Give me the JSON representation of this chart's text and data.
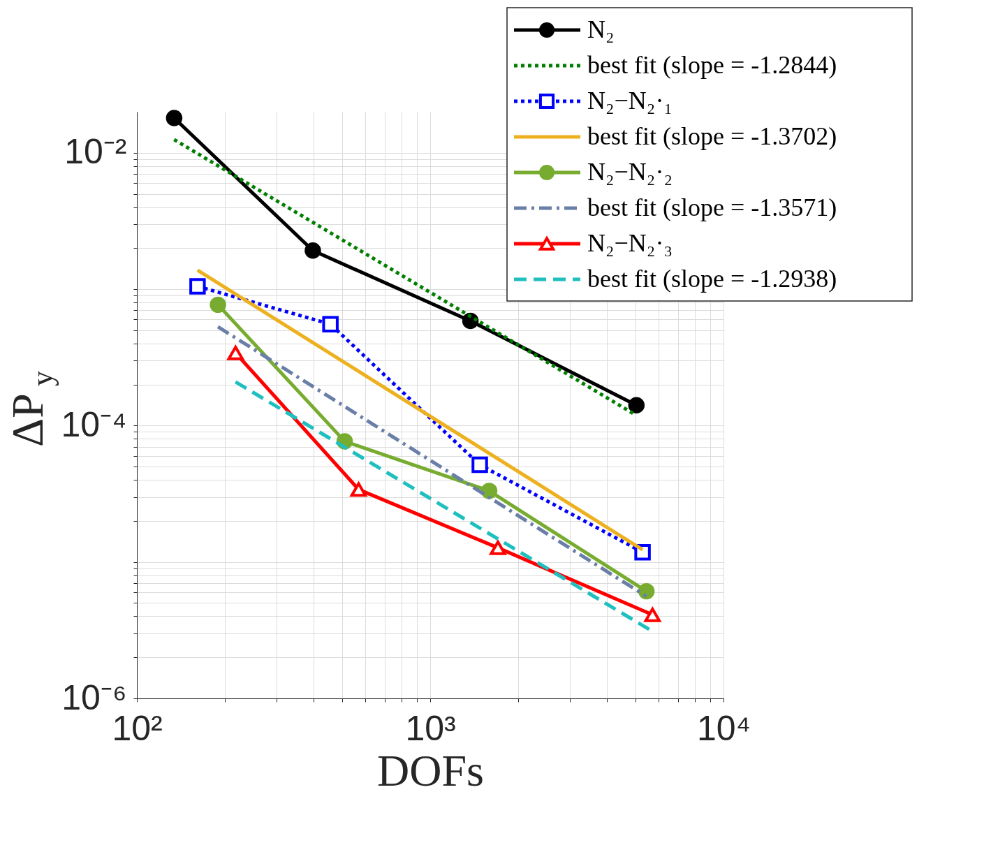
{
  "chart_data": {
    "type": "line",
    "xlabel": "DOFs",
    "ylabel": "ΔP$_{y}$",
    "log": "xy",
    "grid": true,
    "legend": "top right",
    "xlim": [
      100,
      10000
    ],
    "ylim": [
      1e-06,
      0.02
    ],
    "xticks": [
      {
        "value": 100,
        "label": "10²"
      },
      {
        "value": 200,
        "label": null
      },
      {
        "value": 300,
        "label": null
      },
      {
        "value": 400,
        "label": null
      },
      {
        "value": 500,
        "label": null
      },
      {
        "value": 600,
        "label": null
      },
      {
        "value": 700,
        "label": null
      },
      {
        "value": 800,
        "label": null
      },
      {
        "value": 900,
        "label": null
      },
      {
        "value": 1000,
        "label": "10³"
      },
      {
        "value": 2000,
        "label": null
      },
      {
        "value": 3000,
        "label": null
      },
      {
        "value": 4000,
        "label": null
      },
      {
        "value": 5000,
        "label": null
      },
      {
        "value": 6000,
        "label": null
      },
      {
        "value": 7000,
        "label": null
      },
      {
        "value": 8000,
        "label": null
      },
      {
        "value": 9000,
        "label": null
      },
      {
        "value": 10000,
        "label": "10⁴"
      }
    ],
    "yticks": [
      {
        "value": 1e-06,
        "label": "10⁻⁶"
      },
      {
        "value": 2e-06,
        "label": null
      },
      {
        "value": 3e-06,
        "label": null
      },
      {
        "value": 4e-06,
        "label": null
      },
      {
        "value": 5e-06,
        "label": null
      },
      {
        "value": 6e-06,
        "label": null
      },
      {
        "value": 7e-06,
        "label": null
      },
      {
        "value": 8e-06,
        "label": null
      },
      {
        "value": 9e-06,
        "label": null
      },
      {
        "value": 1e-05,
        "label": null
      },
      {
        "value": 2e-05,
        "label": null
      },
      {
        "value": 3e-05,
        "label": null
      },
      {
        "value": 4e-05,
        "label": null
      },
      {
        "value": 5e-05,
        "label": null
      },
      {
        "value": 6e-05,
        "label": null
      },
      {
        "value": 7e-05,
        "label": null
      },
      {
        "value": 8e-05,
        "label": null
      },
      {
        "value": 9e-05,
        "label": null
      },
      {
        "value": 0.0001,
        "label": "10⁻⁴"
      },
      {
        "value": 0.0002,
        "label": null
      },
      {
        "value": 0.0003,
        "label": null
      },
      {
        "value": 0.0004,
        "label": null
      },
      {
        "value": 0.0005,
        "label": null
      },
      {
        "value": 0.0006,
        "label": null
      },
      {
        "value": 0.0007,
        "label": null
      },
      {
        "value": 0.0008,
        "label": null
      },
      {
        "value": 0.0009,
        "label": null
      },
      {
        "value": 0.001,
        "label": null
      },
      {
        "value": 0.002,
        "label": null
      },
      {
        "value": 0.003,
        "label": null
      },
      {
        "value": 0.004,
        "label": null
      },
      {
        "value": 0.005,
        "label": null
      },
      {
        "value": 0.006,
        "label": null
      },
      {
        "value": 0.007,
        "label": null
      },
      {
        "value": 0.008,
        "label": null
      },
      {
        "value": 0.009,
        "label": null
      },
      {
        "value": 0.01,
        "label": "10⁻²"
      }
    ],
    "series": [
      {
        "name": "N₂",
        "color": "#000000",
        "marker": "circle",
        "line_style": "solid",
        "x": [
          134,
          398,
          1371,
          5047
        ],
        "values": [
          0.018,
          0.00192,
          0.000586,
          0.000141
        ]
      },
      {
        "name": "best fit (slope = -1.2844)",
        "color": "#007f00",
        "marker": "none",
        "line_style": "dotted",
        "x": [
          134,
          4945
        ],
        "values": [
          0.0125,
          0.000122
        ]
      },
      {
        "name": "N₂−N₂·₁",
        "color": "#0000ff",
        "marker": "square",
        "line_style": "dotted",
        "x": [
          161,
          457,
          1476,
          5297
        ],
        "values": [
          0.00105,
          0.000554,
          5.16e-05,
          1.18e-05
        ]
      },
      {
        "name": "best fit (slope = -1.3702)",
        "color": "#edb120",
        "marker": "none",
        "line_style": "solid",
        "x": [
          161,
          5297
        ],
        "values": [
          0.00138,
          1.23e-05
        ]
      },
      {
        "name": "N₂−N₂·₂",
        "color": "#77ac30",
        "marker": "circle",
        "line_style": "solid",
        "x": [
          189,
          511,
          1589,
          5460
        ],
        "values": [
          0.000769,
          7.67e-05,
          3.32e-05,
          6.1e-06
        ]
      },
      {
        "name": "best fit (slope = -1.3571)",
        "color": "#6a7fa8",
        "marker": "none",
        "line_style": "dashdot",
        "x": [
          189,
          5460
        ],
        "values": [
          0.00053,
          5.6e-06
        ]
      },
      {
        "name": "N₂−N₂·₃",
        "color": "#ff0000",
        "marker": "triangle",
        "line_style": "solid",
        "x": [
          217,
          570,
          1702,
          5727
        ],
        "values": [
          0.000341,
          3.4e-05,
          1.27e-05,
          4.1e-06
        ]
      },
      {
        "name": "best fit (slope = -1.2938)",
        "color": "#1fbfbf",
        "marker": "none",
        "line_style": "dashed",
        "x": [
          217,
          5727
        ],
        "values": [
          0.000209,
          3.1e-06
        ]
      }
    ]
  }
}
